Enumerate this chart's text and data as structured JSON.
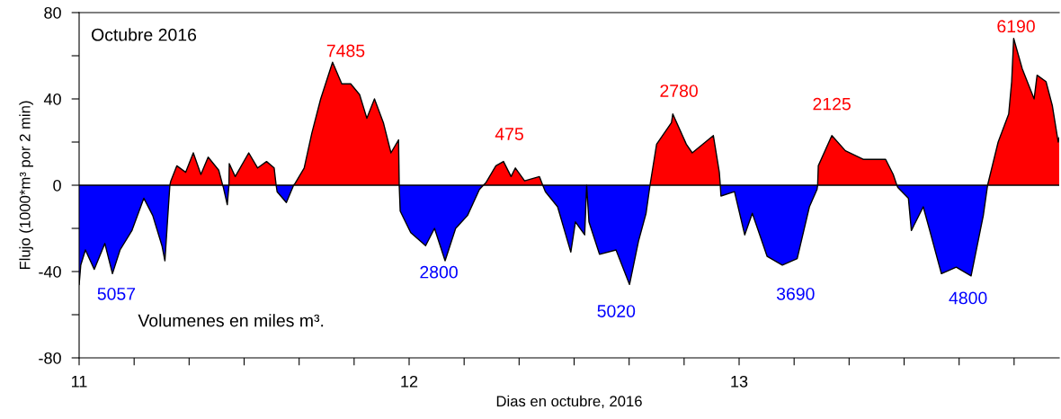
{
  "chart_data": {
    "type": "area",
    "xlabel": "Dias en octubre, 2016",
    "ylabel": "Flujo (1000*m³ por 2 min)",
    "x": [
      11.0,
      11.005,
      11.019,
      11.046,
      11.078,
      11.101,
      11.124,
      11.16,
      11.196,
      11.223,
      11.251,
      11.26,
      11.271,
      11.275,
      11.278,
      11.296,
      11.323,
      11.346,
      11.369,
      11.391,
      11.423,
      11.435,
      11.437,
      11.449,
      11.454,
      11.455,
      11.473,
      11.514,
      11.541,
      11.568,
      11.591,
      11.597,
      11.6,
      11.628,
      11.65,
      11.655,
      11.682,
      11.705,
      11.732,
      11.768,
      11.796,
      11.823,
      11.85,
      11.872,
      11.895,
      11.922,
      11.945,
      11.968,
      11.97,
      11.973,
      12.005,
      12.05,
      12.077,
      12.109,
      12.141,
      12.177,
      12.213,
      12.225,
      12.232,
      12.263,
      12.286,
      12.309,
      12.322,
      12.35,
      12.395,
      12.405,
      12.413,
      12.45,
      12.49,
      12.504,
      12.532,
      12.538,
      12.545,
      12.577,
      12.627,
      12.668,
      12.695,
      12.718,
      12.73,
      12.75,
      12.795,
      12.799,
      12.84,
      12.858,
      12.922,
      12.94,
      12.943,
      12.945,
      12.986,
      13.017,
      13.04,
      13.085,
      13.131,
      13.176,
      13.213,
      13.236,
      13.238,
      13.24,
      13.281,
      13.322,
      13.376,
      13.444,
      13.467,
      13.478,
      13.481,
      13.513,
      13.522,
      13.558,
      13.576,
      13.613,
      13.658,
      13.703,
      13.74,
      13.753,
      13.785,
      13.817,
      13.826,
      13.832,
      13.858,
      13.894,
      13.903,
      13.93,
      13.949,
      13.967,
      13.97
    ],
    "series": [
      {
        "type": "line",
        "color": "#000000",
        "values": [
          -46,
          -37,
          -30,
          -39,
          -27,
          -41,
          -30,
          -21,
          -6,
          -14,
          -28,
          -35,
          -9,
          0,
          2,
          9,
          6,
          15,
          5,
          13,
          7,
          0,
          -1,
          -9,
          0,
          10,
          4,
          15,
          8,
          11,
          8,
          0,
          -3,
          -8,
          0,
          1,
          8,
          24,
          40,
          57,
          47,
          47,
          42,
          31,
          40,
          29,
          15,
          21,
          0,
          -12,
          -22,
          -28,
          -20,
          -35,
          -20,
          -14,
          -2,
          0,
          1,
          9,
          11,
          4,
          8,
          2,
          4,
          0,
          -3,
          -10,
          -31,
          -17,
          -23,
          0,
          -17,
          -32,
          -30,
          -46,
          -26,
          -13,
          0,
          19,
          29,
          33,
          19,
          15,
          23,
          6,
          0,
          -5,
          -3,
          -23,
          -13,
          -33,
          -37,
          -34,
          -10,
          -2,
          0,
          9,
          23,
          16,
          12,
          12,
          5,
          0,
          -1,
          -6,
          -21,
          -10,
          -20,
          -41,
          -38,
          -42,
          -14,
          0,
          20,
          33,
          48,
          68,
          54,
          40,
          51,
          48,
          37,
          20,
          22
        ]
      },
      {
        "color": "#ff0000",
        "values": [
          null,
          null,
          null,
          null,
          null,
          null,
          null,
          null,
          null,
          null,
          null,
          null,
          null,
          0,
          2,
          9,
          6,
          15,
          5,
          13,
          7,
          0,
          null,
          null,
          0,
          10,
          4,
          15,
          8,
          11,
          8,
          0,
          null,
          null,
          0,
          1,
          8,
          24,
          40,
          57,
          47,
          47,
          42,
          31,
          40,
          29,
          15,
          21,
          0,
          null,
          null,
          null,
          null,
          null,
          null,
          null,
          null,
          0,
          1,
          9,
          11,
          4,
          8,
          2,
          4,
          0,
          null,
          null,
          null,
          null,
          null,
          null,
          null,
          null,
          null,
          null,
          null,
          null,
          0,
          19,
          29,
          33,
          19,
          15,
          23,
          6,
          0,
          null,
          null,
          null,
          null,
          null,
          null,
          null,
          null,
          null,
          0,
          9,
          23,
          16,
          12,
          12,
          5,
          0,
          null,
          null,
          null,
          null,
          null,
          null,
          null,
          null,
          null,
          0,
          20,
          33,
          48,
          68,
          54,
          40,
          51,
          48,
          37,
          20,
          22
        ]
      },
      {
        "color": "#0000ff",
        "values": [
          -46,
          -37,
          -30,
          -39,
          -27,
          -41,
          -30,
          -21,
          -6,
          -14,
          -28,
          -35,
          -9,
          0,
          null,
          null,
          null,
          null,
          null,
          null,
          null,
          0,
          -1,
          -9,
          0,
          null,
          null,
          null,
          null,
          null,
          null,
          0,
          -3,
          -8,
          0,
          null,
          null,
          null,
          null,
          null,
          null,
          null,
          null,
          null,
          null,
          null,
          null,
          null,
          0,
          -12,
          -22,
          -28,
          -20,
          -35,
          -20,
          -14,
          -2,
          0,
          null,
          null,
          null,
          null,
          null,
          null,
          null,
          0,
          -3,
          -10,
          -31,
          -17,
          -23,
          0,
          -17,
          -32,
          -30,
          -46,
          -26,
          -13,
          0,
          null,
          null,
          null,
          null,
          null,
          null,
          null,
          0,
          -5,
          -3,
          -23,
          -13,
          -33,
          -37,
          -34,
          -10,
          -2,
          0,
          null,
          null,
          null,
          null,
          null,
          null,
          0,
          -1,
          -6,
          -21,
          -10,
          -20,
          -41,
          -38,
          -42,
          -14,
          0,
          null,
          null,
          null,
          null,
          null,
          null,
          null,
          null,
          null,
          null,
          null
        ]
      }
    ],
    "xlim": [
      11,
      13.97
    ],
    "xticks": [
      11,
      {
        "value": 11.1667,
        "label": null
      },
      {
        "value": 11.3333,
        "label": null
      },
      {
        "value": 11.5,
        "label": null
      },
      {
        "value": 11.6667,
        "label": null
      },
      {
        "value": 11.8333,
        "label": null
      },
      12,
      {
        "value": 12.1667,
        "label": null
      },
      {
        "value": 12.3333,
        "label": null
      },
      {
        "value": 12.5,
        "label": null
      },
      {
        "value": 12.6667,
        "label": null
      },
      {
        "value": 12.8333,
        "label": null
      },
      13,
      {
        "value": 13.1667,
        "label": null
      },
      {
        "value": 13.3333,
        "label": null
      },
      {
        "value": 13.5,
        "label": null
      },
      {
        "value": 13.6667,
        "label": null
      },
      {
        "value": 13.8333,
        "label": null
      }
    ],
    "ylim": [
      -80,
      80
    ],
    "yticks": [
      -80,
      {
        "value": -60,
        "label": null
      },
      -40,
      {
        "value": -20,
        "label": null
      },
      0,
      {
        "value": 20,
        "label": null
      },
      40,
      {
        "value": 60,
        "label": null
      },
      80
    ],
    "ref_lines": [
      {
        "axis": "y",
        "value": 0,
        "color": "#000000"
      }
    ],
    "annotations": [
      "Octubre 2016",
      "Volumenes en miles m³.",
      "7485",
      "475",
      "2780",
      "2125",
      "6190",
      "5057",
      "2800",
      "5020",
      "3690",
      "4800"
    ],
    "grid": false,
    "legend": false
  }
}
